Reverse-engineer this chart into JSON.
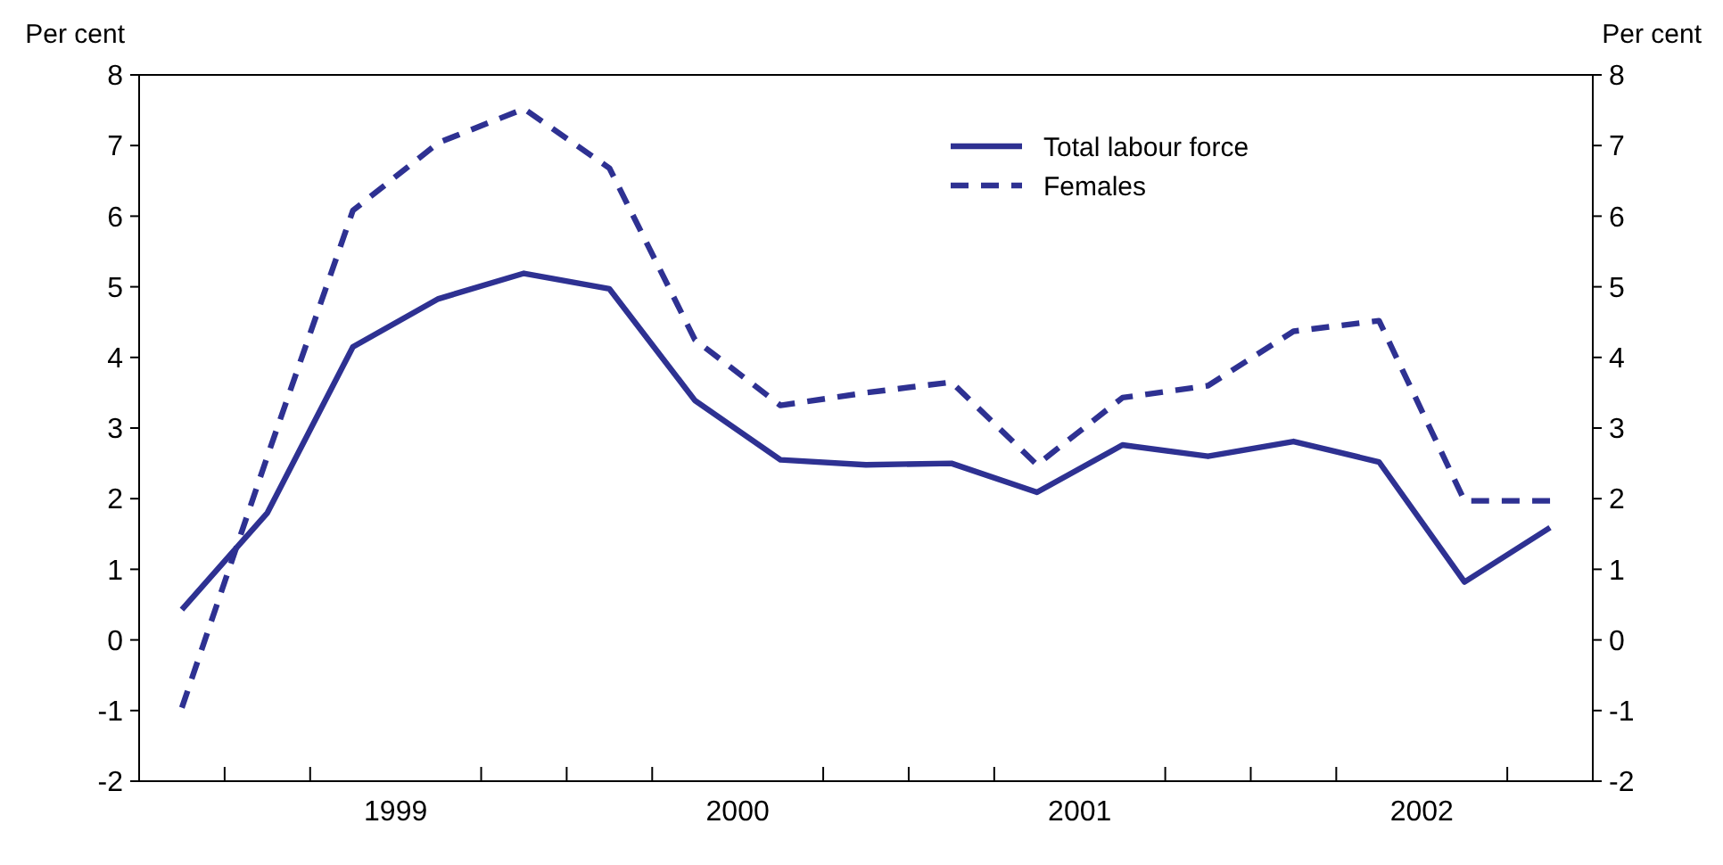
{
  "chart_data": {
    "type": "line",
    "ylabel": "Per cent",
    "y2label": "Per cent",
    "x": [
      1998.875,
      1999.125,
      1999.375,
      1999.625,
      1999.875,
      2000.125,
      2000.375,
      2000.625,
      2000.875,
      2001.125,
      2001.375,
      2001.625,
      2001.875,
      2002.125,
      2002.375,
      2002.625,
      2002.875
    ],
    "xlim": [
      1998.75,
      2003.0
    ],
    "xticks": [
      {
        "value": 1999,
        "label": null
      },
      {
        "value": 1999.25,
        "label": null
      },
      {
        "value": 1999.5,
        "label": "1999"
      },
      {
        "value": 1999.75,
        "label": null
      },
      {
        "value": 2000,
        "label": null
      },
      {
        "value": 2000.25,
        "label": null
      },
      {
        "value": 2000.5,
        "label": "2000"
      },
      {
        "value": 2000.75,
        "label": null
      },
      {
        "value": 2001,
        "label": null
      },
      {
        "value": 2001.25,
        "label": null
      },
      {
        "value": 2001.5,
        "label": "2001"
      },
      {
        "value": 2001.75,
        "label": null
      },
      {
        "value": 2002,
        "label": null
      },
      {
        "value": 2002.25,
        "label": null
      },
      {
        "value": 2002.5,
        "label": "2002"
      },
      {
        "value": 2002.75,
        "label": null
      }
    ],
    "ylim": [
      -2,
      8
    ],
    "yticks": [
      -2,
      -1,
      0,
      1,
      2,
      3,
      4,
      5,
      6,
      7,
      8
    ],
    "y2lim": [
      -2,
      8
    ],
    "y2ticks": [
      -2,
      -1,
      0,
      1,
      2,
      3,
      4,
      5,
      6,
      7,
      8
    ],
    "grid": false,
    "legend": "top right",
    "marker": "none",
    "series": [
      {
        "name": "Total labour force",
        "color": "#2e3192",
        "line_style": "solid",
        "values": [
          0.43,
          1.8,
          4.15,
          4.83,
          5.19,
          4.97,
          3.39,
          2.55,
          2.48,
          2.5,
          2.09,
          2.76,
          2.6,
          2.81,
          2.52,
          0.82,
          1.59
        ]
      },
      {
        "name": "Females",
        "color": "#2e3192",
        "line_style": "dashed",
        "values": [
          -0.96,
          2.6,
          6.08,
          7.04,
          7.52,
          6.68,
          4.25,
          3.32,
          3.5,
          3.65,
          2.48,
          3.43,
          3.6,
          4.37,
          4.52,
          1.97,
          1.97
        ]
      }
    ]
  }
}
